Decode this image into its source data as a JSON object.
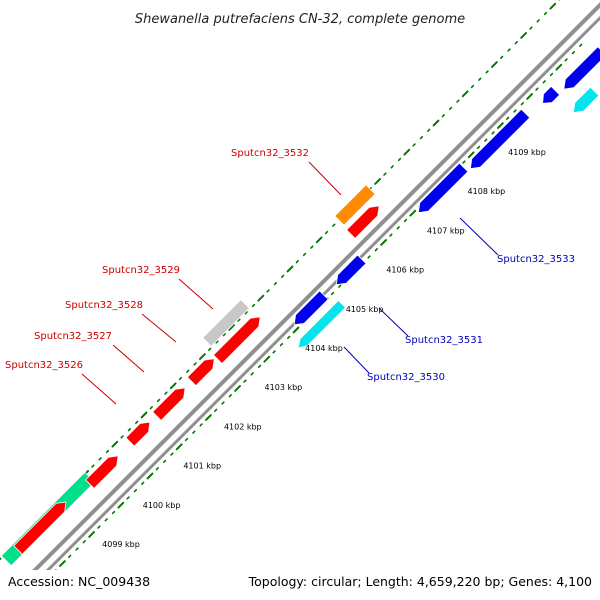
{
  "title": "Shewanella putrefaciens CN-32, complete genome",
  "footer": {
    "accession": "Accession: NC_009438",
    "summary": "Topology: circular; Length: 4,659,220 bp; Genes: 4,100"
  },
  "scale_labels": [
    "4099 kbp",
    "4100 kbp",
    "4101 kbp",
    "4102 kbp",
    "4103 kbp",
    "4104 kbp",
    "4105 kbp",
    "4106 kbp",
    "4107 kbp",
    "4108 kbp",
    "4109 kbp"
  ],
  "gene_labels": [
    {
      "text": "Sputcn32_3532",
      "strand": "forward"
    },
    {
      "text": "Sputcn32_3529",
      "strand": "forward"
    },
    {
      "text": "Sputcn32_3528",
      "strand": "forward"
    },
    {
      "text": "Sputcn32_3527",
      "strand": "forward"
    },
    {
      "text": "Sputcn32_3526",
      "strand": "forward"
    },
    {
      "text": "Sputcn32_3533",
      "strand": "reverse"
    },
    {
      "text": "Sputcn32_3531",
      "strand": "reverse"
    },
    {
      "text": "Sputcn32_3530",
      "strand": "reverse"
    }
  ],
  "colors": {
    "forward_label": "#cc0000",
    "reverse_label": "#0000bb",
    "cds_forward": "#ff0000",
    "cds_reverse": "#0000ee",
    "rna_orange": "#ff8c00",
    "pseudo_gray": "#c8c8c8",
    "cyan": "#00e5ee",
    "green": "#00e08a",
    "tick_green": "#007700",
    "backbone": "#909090"
  }
}
